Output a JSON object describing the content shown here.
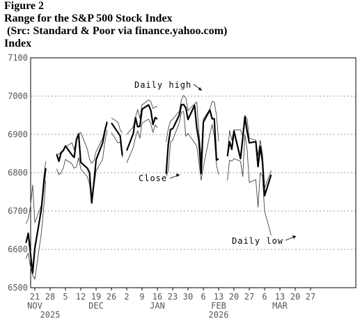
{
  "caption": {
    "figure": "Figure 2",
    "title": "Range for the S&P 500 Stock Index",
    "source": " (Src: Standard & Poor via finance.yahoo.com)",
    "ylabel": "Index"
  },
  "chart_data": {
    "type": "line",
    "title": "Range for the S&P 500 Stock Index",
    "ylabel": "Index",
    "ylim": [
      6500,
      7100
    ],
    "yticks": [
      6500,
      6600,
      6700,
      6800,
      6900,
      7000,
      7100
    ],
    "grid": "horizontal dashed",
    "x_day_ticks": [
      "21",
      "28",
      "5",
      "12",
      "19",
      "26",
      "2",
      "9",
      "16",
      "23",
      "30",
      "6",
      "13",
      "20",
      "27",
      "6",
      "13",
      "20",
      "27"
    ],
    "x_month_labels": [
      "NOV",
      "DEC",
      "JAN",
      "FEB",
      "MAR"
    ],
    "x_year_labels": [
      "2025",
      "2026"
    ],
    "annotations": [
      "Daily high",
      "Close",
      "Daily low"
    ],
    "series": [
      {
        "name": "Close",
        "segments": [
          [
            [
              "2025-11-17",
              6617
            ],
            [
              "2025-11-18",
              6642
            ],
            [
              "2025-11-19",
              6590
            ],
            [
              "2025-11-20",
              6538
            ],
            [
              "2025-11-21",
              6603
            ],
            [
              "2025-11-24",
              6705
            ],
            [
              "2025-11-25",
              6765
            ],
            [
              "2025-11-26",
              6812
            ]
          ],
          [
            [
              "2025-12-01",
              6848
            ],
            [
              "2025-12-02",
              6830
            ],
            [
              "2025-12-03",
              6852
            ],
            [
              "2025-12-04",
              6858
            ],
            [
              "2025-12-05",
              6870
            ],
            [
              "2025-12-08",
              6846
            ],
            [
              "2025-12-09",
              6840
            ],
            [
              "2025-12-10",
              6886
            ],
            [
              "2025-12-11",
              6901
            ],
            [
              "2025-12-12",
              6827
            ],
            [
              "2025-12-15",
              6812
            ],
            [
              "2025-12-16",
              6800
            ],
            [
              "2025-12-17",
              6721
            ],
            [
              "2025-12-18",
              6775
            ],
            [
              "2025-12-19",
              6834
            ],
            [
              "2025-12-22",
              6878
            ],
            [
              "2025-12-23",
              6909
            ],
            [
              "2025-12-24",
              6932
            ]
          ],
          [
            [
              "2025-12-26",
              6930
            ],
            [
              "2025-12-29",
              6905
            ],
            [
              "2025-12-30",
              6896
            ],
            [
              "2025-12-31",
              6845
            ]
          ],
          [
            [
              "2026-01-02",
              6858
            ],
            [
              "2026-01-05",
              6902
            ],
            [
              "2026-01-06",
              6944
            ],
            [
              "2026-01-07",
              6920
            ],
            [
              "2026-01-08",
              6921
            ],
            [
              "2026-01-09",
              6966
            ],
            [
              "2026-01-12",
              6977
            ],
            [
              "2026-01-13",
              6963
            ],
            [
              "2026-01-14",
              6926
            ],
            [
              "2026-01-15",
              6944
            ],
            [
              "2026-01-16",
              6940
            ]
          ],
          [
            [
              "2026-01-20",
              6797
            ],
            [
              "2026-01-21",
              6875
            ],
            [
              "2026-01-22",
              6913
            ],
            [
              "2026-01-23",
              6915
            ],
            [
              "2026-01-26",
              6950
            ],
            [
              "2026-01-27",
              6978
            ],
            [
              "2026-01-28",
              6978
            ],
            [
              "2026-01-29",
              6969
            ],
            [
              "2026-01-30",
              6939
            ],
            [
              "2026-02-02",
              6976
            ],
            [
              "2026-02-03",
              6917
            ],
            [
              "2026-02-04",
              6883
            ],
            [
              "2026-02-05",
              6798
            ],
            [
              "2026-02-06",
              6932
            ],
            [
              "2026-02-09",
              6964
            ],
            [
              "2026-02-10",
              6941
            ],
            [
              "2026-02-11",
              6941
            ],
            [
              "2026-02-12",
              6833
            ],
            [
              "2026-02-13",
              6836
            ]
          ],
          [
            [
              "2026-02-17",
              6843
            ],
            [
              "2026-02-18",
              6881
            ],
            [
              "2026-02-19",
              6861
            ],
            [
              "2026-02-20",
              6909
            ],
            [
              "2026-02-23",
              6837
            ],
            [
              "2026-02-24",
              6890
            ],
            [
              "2026-02-25",
              6946
            ],
            [
              "2026-02-26",
              6908
            ],
            [
              "2026-02-27",
              6878
            ],
            [
              "2026-03-02",
              6881
            ],
            [
              "2026-03-03",
              6816
            ],
            [
              "2026-03-04",
              6869
            ],
            [
              "2026-03-05",
              6830
            ],
            [
              "2026-03-06",
              6740
            ],
            [
              "2026-03-09",
              6795
            ]
          ]
        ]
      },
      {
        "name": "Daily high",
        "segments": [
          [
            [
              "2025-11-17",
              6667
            ],
            [
              "2025-11-18",
              6680
            ],
            [
              "2025-11-19",
              6712
            ],
            [
              "2025-11-20",
              6768
            ],
            [
              "2025-11-21",
              6670
            ],
            [
              "2025-11-24",
              6715
            ],
            [
              "2025-11-25",
              6785
            ],
            [
              "2025-11-26",
              6830
            ]
          ],
          [
            [
              "2025-12-01",
              6850
            ],
            [
              "2025-12-02",
              6848
            ],
            [
              "2025-12-03",
              6855
            ],
            [
              "2025-12-04",
              6860
            ],
            [
              "2025-12-05",
              6868
            ],
            [
              "2025-12-08",
              6878
            ],
            [
              "2025-12-09",
              6860
            ],
            [
              "2025-12-10",
              6889
            ],
            [
              "2025-12-11",
              6903
            ],
            [
              "2025-12-12",
              6905
            ],
            [
              "2025-12-15",
              6862
            ],
            [
              "2025-12-16",
              6835
            ],
            [
              "2025-12-17",
              6825
            ],
            [
              "2025-12-18",
              6832
            ],
            [
              "2025-12-19",
              6855
            ],
            [
              "2025-12-22",
              6890
            ],
            [
              "2025-12-23",
              6915
            ],
            [
              "2025-12-24",
              6935
            ]
          ],
          [
            [
              "2025-12-26",
              6943
            ],
            [
              "2025-12-29",
              6932
            ],
            [
              "2025-12-30",
              6912
            ],
            [
              "2025-12-31",
              6904
            ]
          ],
          [
            [
              "2026-01-02",
              6900
            ],
            [
              "2026-01-05",
              6920
            ],
            [
              "2026-01-06",
              6945
            ],
            [
              "2026-01-07",
              6965
            ],
            [
              "2026-01-08",
              6942
            ],
            [
              "2026-01-09",
              6977
            ],
            [
              "2026-01-12",
              6990
            ],
            [
              "2026-01-13",
              6986
            ],
            [
              "2026-01-14",
              6968
            ],
            [
              "2026-01-15",
              6972
            ],
            [
              "2026-01-16",
              6973
            ]
          ],
          [
            [
              "2026-01-20",
              6880
            ],
            [
              "2026-01-21",
              6915
            ],
            [
              "2026-01-22",
              6935
            ],
            [
              "2026-01-23",
              6940
            ],
            [
              "2026-01-26",
              6960
            ],
            [
              "2026-01-27",
              6990
            ],
            [
              "2026-01-28",
              7002
            ],
            [
              "2026-01-29",
              6995
            ],
            [
              "2026-01-30",
              6962
            ],
            [
              "2026-02-02",
              6980
            ],
            [
              "2026-02-03",
              6985
            ],
            [
              "2026-02-04",
              6905
            ],
            [
              "2026-02-05",
              6840
            ],
            [
              "2026-02-06",
              6940
            ],
            [
              "2026-02-09",
              6966
            ],
            [
              "2026-02-10",
              6986
            ],
            [
              "2026-02-11",
              6985
            ],
            [
              "2026-02-12",
              6950
            ],
            [
              "2026-02-13",
              6882
            ]
          ],
          [
            [
              "2026-02-17",
              6850
            ],
            [
              "2026-02-18",
              6910
            ],
            [
              "2026-02-19",
              6885
            ],
            [
              "2026-02-20",
              6912
            ],
            [
              "2026-02-23",
              6912
            ],
            [
              "2026-02-24",
              6895
            ],
            [
              "2026-02-25",
              6950
            ],
            [
              "2026-02-26",
              6940
            ],
            [
              "2026-02-27",
              6890
            ],
            [
              "2026-03-02",
              6885
            ],
            [
              "2026-03-03",
              6845
            ],
            [
              "2026-03-04",
              6885
            ],
            [
              "2026-03-05",
              6850
            ],
            [
              "2026-03-06",
              6760
            ],
            [
              "2026-03-09",
              6806
            ]
          ]
        ]
      },
      {
        "name": "Daily low",
        "segments": [
          [
            [
              "2025-11-17",
              6576
            ],
            [
              "2025-11-18",
              6590
            ],
            [
              "2025-11-19",
              6555
            ],
            [
              "2025-11-20",
              6532
            ],
            [
              "2025-11-21",
              6522
            ],
            [
              "2025-11-24",
              6643
            ],
            [
              "2025-11-25",
              6705
            ],
            [
              "2025-11-26",
              6779
            ]
          ],
          [
            [
              "2025-12-01",
              6810
            ],
            [
              "2025-12-02",
              6795
            ],
            [
              "2025-12-03",
              6800
            ],
            [
              "2025-12-04",
              6812
            ],
            [
              "2025-12-05",
              6835
            ],
            [
              "2025-12-08",
              6823
            ],
            [
              "2025-12-09",
              6812
            ],
            [
              "2025-12-10",
              6815
            ],
            [
              "2025-12-11",
              6840
            ],
            [
              "2025-12-12",
              6810
            ],
            [
              "2025-12-15",
              6790
            ],
            [
              "2025-12-16",
              6770
            ],
            [
              "2025-12-17",
              6720
            ],
            [
              "2025-12-18",
              6765
            ],
            [
              "2025-12-19",
              6805
            ],
            [
              "2025-12-22",
              6835
            ],
            [
              "2025-12-23",
              6880
            ],
            [
              "2025-12-24",
              6912
            ]
          ],
          [
            [
              "2025-12-26",
              6905
            ],
            [
              "2025-12-29",
              6878
            ],
            [
              "2025-12-30",
              6880
            ],
            [
              "2025-12-31",
              6840
            ]
          ],
          [
            [
              "2026-01-02",
              6826
            ],
            [
              "2026-01-05",
              6866
            ],
            [
              "2026-01-06",
              6892
            ],
            [
              "2026-01-07",
              6910
            ],
            [
              "2026-01-08",
              6890
            ],
            [
              "2026-01-09",
              6930
            ],
            [
              "2026-01-12",
              6940
            ],
            [
              "2026-01-13",
              6928
            ],
            [
              "2026-01-14",
              6905
            ],
            [
              "2026-01-15",
              6925
            ],
            [
              "2026-01-16",
              6918
            ]
          ],
          [
            [
              "2026-01-20",
              6790
            ],
            [
              "2026-01-21",
              6805
            ],
            [
              "2026-01-22",
              6880
            ],
            [
              "2026-01-23",
              6885
            ],
            [
              "2026-01-26",
              6930
            ],
            [
              "2026-01-27",
              6958
            ],
            [
              "2026-01-28",
              6960
            ],
            [
              "2026-01-29",
              6895
            ],
            [
              "2026-01-30",
              6903
            ],
            [
              "2026-02-02",
              6878
            ],
            [
              "2026-02-03",
              6870
            ],
            [
              "2026-02-04",
              6827
            ],
            [
              "2026-02-05",
              6780
            ],
            [
              "2026-02-06",
              6815
            ],
            [
              "2026-02-09",
              6900
            ],
            [
              "2026-02-10",
              6926
            ],
            [
              "2026-02-11",
              6895
            ],
            [
              "2026-02-12",
              6820
            ],
            [
              "2026-02-13",
              6795
            ]
          ],
          [
            [
              "2026-02-17",
              6780
            ],
            [
              "2026-02-18",
              6833
            ],
            [
              "2026-02-19",
              6830
            ],
            [
              "2026-02-20",
              6837
            ],
            [
              "2026-02-23",
              6830
            ],
            [
              "2026-02-24",
              6790
            ],
            [
              "2026-02-25",
              6900
            ],
            [
              "2026-02-26",
              6861
            ],
            [
              "2026-02-27",
              6775
            ],
            [
              "2026-03-02",
              6782
            ],
            [
              "2026-03-03",
              6710
            ],
            [
              "2026-03-04",
              6800
            ],
            [
              "2026-03-05",
              6790
            ],
            [
              "2026-03-06",
              6700
            ],
            [
              "2026-03-09",
              6637
            ]
          ]
        ]
      }
    ]
  }
}
